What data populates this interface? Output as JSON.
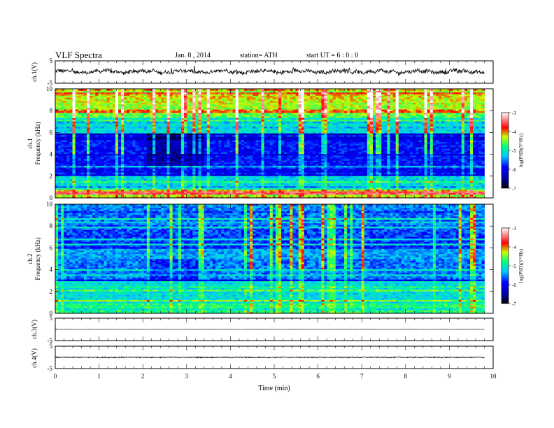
{
  "header": {
    "title": "VLF  Spectra",
    "date": "Jan.  8   , 2014",
    "station": "station= ATH",
    "start": "start  UT  =    6  : 0  : 0"
  },
  "chart_data": [
    {
      "id": "ch1-waveform",
      "type": "line",
      "ylabel": "ch.1(V)",
      "ylim": [
        -5,
        5
      ],
      "yticks": [
        "5",
        "-5"
      ],
      "xlim": [
        0,
        10
      ],
      "description_series": "noisy broadband trace around +0.2 V",
      "baseline": 0.2,
      "noise_amplitude": 0.8
    },
    {
      "id": "ch1-spectrogram",
      "type": "heatmap",
      "ylabel": "ch.1\nFrequency  (kHz)",
      "ylim": [
        0,
        10
      ],
      "yticks": [
        "0",
        "2",
        "4",
        "6",
        "8",
        "10"
      ],
      "xlim": [
        0,
        10
      ],
      "data_end_min": 9.8,
      "colorbar": {
        "label": "log(PSD)(V²/Hz)",
        "range": [
          -7,
          -3
        ],
        "ticks": [
          "-7",
          "-6",
          "-5",
          "-4",
          "-3"
        ]
      }
    },
    {
      "id": "ch2-spectrogram",
      "type": "heatmap",
      "ylabel": "ch.2\nFrequency  (kHz)",
      "ylim": [
        0,
        10
      ],
      "yticks": [
        "0",
        "2",
        "4",
        "6",
        "8",
        "10"
      ],
      "xlim": [
        0,
        10
      ],
      "data_end_min": 9.8,
      "colorbar": {
        "label": "log(PSD)(V²/Hz)",
        "range": [
          -7,
          -3
        ],
        "ticks": [
          "-7",
          "-6",
          "-5",
          "-4",
          "-3"
        ]
      }
    },
    {
      "id": "ch3-waveform",
      "type": "line",
      "ylabel": "ch.3(V)",
      "ylim": [
        -5,
        5
      ],
      "yticks": [
        "5",
        "-5"
      ],
      "xlim": [
        0,
        10
      ],
      "baseline": 0.0,
      "noise_amplitude": 0.05
    },
    {
      "id": "ch4-waveform",
      "type": "line",
      "ylabel": "ch.4(V)",
      "ylim": [
        -5,
        5
      ],
      "yticks": [
        "5",
        "-5"
      ],
      "xlim": [
        0,
        10
      ],
      "baseline": 0.0,
      "noise_amplitude": 0.25
    }
  ],
  "xaxis": {
    "label": "Time  (min)",
    "ticks": [
      "0",
      "1",
      "2",
      "3",
      "4",
      "5",
      "6",
      "7",
      "8",
      "9",
      "10"
    ]
  },
  "colors": {
    "line": "#000000",
    "colormap": [
      "#000000",
      "#0000ff",
      "#00bfff",
      "#00ff80",
      "#ffff00",
      "#ff0000",
      "#ffffff"
    ]
  }
}
